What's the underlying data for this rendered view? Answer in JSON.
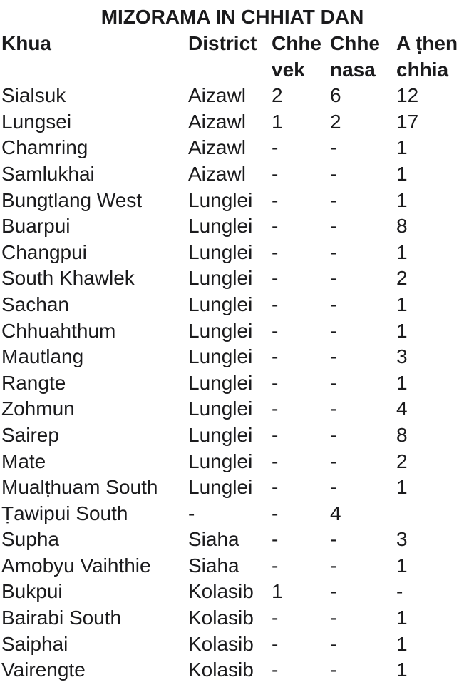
{
  "title": "MIZORAMA IN CHHIAT DAN",
  "colors": {
    "background": "#ffffff",
    "text": "#1b1b1d"
  },
  "table": {
    "columns": [
      {
        "id": "khua",
        "label": "Khua"
      },
      {
        "id": "district",
        "label": "District"
      },
      {
        "id": "chhe-vek",
        "label": "Chhe vek"
      },
      {
        "id": "chhe-nasa",
        "label": "Chhe nasa"
      },
      {
        "id": "a-then-chhia",
        "label": "A ṭhen chhia"
      }
    ],
    "empty_marker": "-",
    "rows": [
      [
        "Sialsuk",
        "Aizawl",
        "2",
        "6",
        "12"
      ],
      [
        "Lungsei",
        "Aizawl",
        "1",
        "2",
        "17"
      ],
      [
        "Chamring",
        "Aizawl",
        "-",
        "-",
        "1"
      ],
      [
        "Samlukhai",
        "Aizawl",
        "-",
        "-",
        "1"
      ],
      [
        "Bungtlang West",
        "Lunglei",
        "-",
        "-",
        "1"
      ],
      [
        "Buarpui",
        "Lunglei",
        "-",
        "-",
        "8"
      ],
      [
        "Changpui",
        "Lunglei",
        "-",
        "-",
        "1"
      ],
      [
        "South Khawlek",
        "Lunglei",
        "-",
        "-",
        "2"
      ],
      [
        "Sachan",
        "Lunglei",
        "-",
        "-",
        "1"
      ],
      [
        "Chhuahthum",
        "Lunglei",
        "-",
        "-",
        "1"
      ],
      [
        "Mautlang",
        "Lunglei",
        "-",
        "-",
        "3"
      ],
      [
        "Rangte",
        "Lunglei",
        "-",
        "-",
        "1"
      ],
      [
        "Zohmun",
        "Lunglei",
        "-",
        "-",
        "4"
      ],
      [
        "Sairep",
        "Lunglei",
        "-",
        "-",
        "8"
      ],
      [
        "Mate",
        "Lunglei",
        "-",
        "-",
        "2"
      ],
      [
        "Mualṭhuam South",
        "Lunglei",
        "-",
        "-",
        "1"
      ],
      [
        "Ṭawipui South",
        "-",
        "-",
        "4",
        ""
      ],
      [
        "Supha",
        "Siaha",
        "-",
        "-",
        "3"
      ],
      [
        "Amobyu Vaihthie",
        "Siaha",
        "-",
        "-",
        "1"
      ],
      [
        "Bukpui",
        "Kolasib",
        "1",
        "-",
        "-"
      ],
      [
        "Bairabi South",
        "Kolasib",
        "-",
        "-",
        "1"
      ],
      [
        "Saiphai",
        "Kolasib",
        "-",
        "-",
        "1"
      ],
      [
        "Vairengte",
        "Kolasib",
        "-",
        "-",
        "1"
      ]
    ]
  }
}
